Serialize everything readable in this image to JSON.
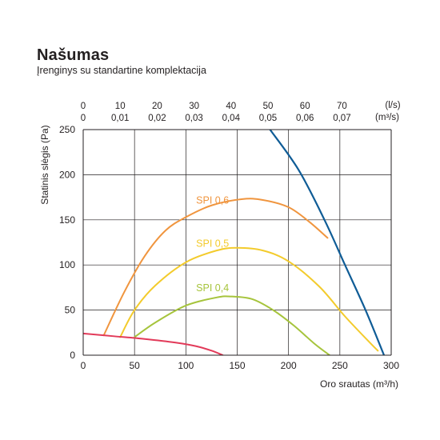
{
  "title": "Našumas",
  "subtitle": "Įrenginys su standartine komplektacija",
  "chart_data": {
    "type": "line",
    "xlabel": "Oro srautas (m³/h)",
    "ylabel": "Statinis slėgis (Pa)",
    "xlim": [
      0,
      300
    ],
    "ylim": [
      0,
      250
    ],
    "x_ticks": [
      "0",
      "50",
      "100",
      "150",
      "200",
      "250",
      "300"
    ],
    "y_ticks": [
      "0",
      "50",
      "100",
      "150",
      "200",
      "250"
    ],
    "grid": true,
    "top_axis": {
      "ls_ticks": [
        {
          "label": "0",
          "x": 0
        },
        {
          "label": "10",
          "x": 36
        },
        {
          "label": "20",
          "x": 72
        },
        {
          "label": "30",
          "x": 108
        },
        {
          "label": "40",
          "x": 144
        },
        {
          "label": "50",
          "x": 180
        },
        {
          "label": "60",
          "x": 216
        },
        {
          "label": "70",
          "x": 252
        }
      ],
      "m3s_ticks": [
        {
          "label": "0",
          "x": 0
        },
        {
          "label": "0,01",
          "x": 36
        },
        {
          "label": "0,02",
          "x": 72
        },
        {
          "label": "0,03",
          "x": 108
        },
        {
          "label": "0,04",
          "x": 144
        },
        {
          "label": "0,05",
          "x": 180
        },
        {
          "label": "0,06",
          "x": 216
        },
        {
          "label": "0,07",
          "x": 252
        }
      ],
      "unit_ls": "(l/s)",
      "unit_m3s": "(m³/s)"
    },
    "series": [
      {
        "label": "SPI 0,6",
        "color": "#f0953e",
        "label_at": [
          110,
          168
        ],
        "points": [
          [
            20,
            22
          ],
          [
            40,
            70
          ],
          [
            60,
            110
          ],
          [
            80,
            138
          ],
          [
            100,
            153
          ],
          [
            125,
            166
          ],
          [
            155,
            173
          ],
          [
            175,
            172
          ],
          [
            200,
            164
          ],
          [
            220,
            148
          ],
          [
            238,
            130
          ]
        ]
      },
      {
        "label": "SPI 0,5",
        "color": "#f3cb2c",
        "label_at": [
          110,
          120
        ],
        "points": [
          [
            36,
            20
          ],
          [
            50,
            50
          ],
          [
            70,
            77
          ],
          [
            100,
            103
          ],
          [
            130,
            116
          ],
          [
            150,
            119
          ],
          [
            175,
            116
          ],
          [
            200,
            104
          ],
          [
            230,
            76
          ],
          [
            255,
            43
          ],
          [
            280,
            13
          ],
          [
            287,
            5
          ]
        ]
      },
      {
        "label": "SPI 0,4",
        "color": "#a6c43c",
        "label_at": [
          110,
          71
        ],
        "points": [
          [
            50,
            20
          ],
          [
            70,
            36
          ],
          [
            100,
            55
          ],
          [
            130,
            64
          ],
          [
            145,
            65
          ],
          [
            165,
            62
          ],
          [
            185,
            50
          ],
          [
            205,
            33
          ],
          [
            225,
            13
          ],
          [
            240,
            0
          ]
        ]
      },
      {
        "color": "#e23a59",
        "points": [
          [
            0,
            24
          ],
          [
            30,
            21
          ],
          [
            60,
            18
          ],
          [
            90,
            14
          ],
          [
            110,
            10
          ],
          [
            125,
            5
          ],
          [
            136,
            0
          ]
        ]
      },
      {
        "color": "#0f5c96",
        "points": [
          [
            182,
            250
          ],
          [
            210,
            205
          ],
          [
            235,
            150
          ],
          [
            255,
            100
          ],
          [
            275,
            50
          ],
          [
            293,
            0
          ]
        ]
      }
    ]
  }
}
